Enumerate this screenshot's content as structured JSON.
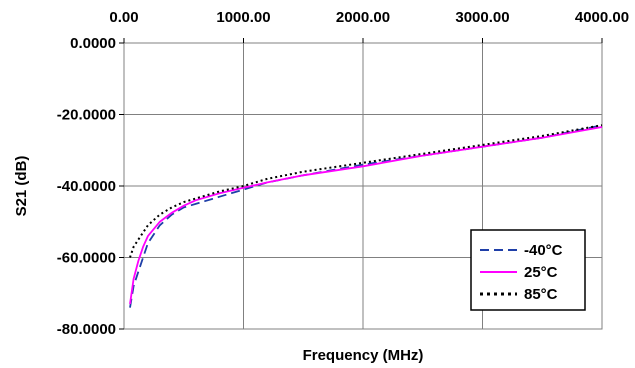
{
  "chart_data": {
    "type": "line",
    "title": "",
    "xlabel": "Frequency (MHz)",
    "ylabel": "S21 (dB)",
    "xlim": [
      0,
      4000
    ],
    "ylim": [
      -80,
      0
    ],
    "x_axis_position": "top",
    "x_ticks": [
      0,
      1000,
      2000,
      3000,
      4000
    ],
    "x_tick_labels": [
      "0.00",
      "1000.00",
      "2000.00",
      "3000.00",
      "4000.00"
    ],
    "y_ticks": [
      0,
      -20,
      -40,
      -60,
      -80
    ],
    "y_tick_labels": [
      "0.0000",
      "-20.0000",
      "-40.0000",
      "-60.0000",
      "-80.0000"
    ],
    "grid": true,
    "legend": "bottom-right",
    "series": [
      {
        "name": "-40°C",
        "color": "#1f3fa8",
        "dash": "dashed",
        "x": [
          50,
          80,
          120,
          160,
          200,
          300,
          400,
          500,
          600,
          800,
          1000,
          1200,
          1500,
          2000,
          2500,
          3000,
          3500,
          4000
        ],
        "y": [
          -74,
          -68,
          -64,
          -60,
          -56,
          -51,
          -48,
          -46,
          -45,
          -43,
          -41,
          -39,
          -37,
          -34,
          -31.5,
          -29,
          -26.5,
          -23
        ]
      },
      {
        "name": "25°C",
        "color": "#ff00ff",
        "dash": "solid",
        "x": [
          50,
          80,
          120,
          160,
          200,
          300,
          400,
          500,
          600,
          800,
          1000,
          1200,
          1500,
          2000,
          2500,
          3000,
          3500,
          4000
        ],
        "y": [
          -73,
          -66,
          -61,
          -57,
          -54,
          -50,
          -47.5,
          -45.5,
          -44,
          -42,
          -40.5,
          -39,
          -37,
          -34.5,
          -31.5,
          -29,
          -26.5,
          -23.5
        ]
      },
      {
        "name": "85°C",
        "color": "#000000",
        "dash": "dotted",
        "x": [
          50,
          80,
          120,
          160,
          200,
          300,
          400,
          500,
          600,
          800,
          1000,
          1200,
          1500,
          2000,
          2500,
          3000,
          3500,
          4000
        ],
        "y": [
          -60,
          -57,
          -55,
          -53,
          -51,
          -48,
          -46,
          -44.5,
          -43.5,
          -41.5,
          -40,
          -38,
          -36,
          -33.5,
          -31,
          -28.5,
          -26,
          -23
        ]
      }
    ]
  }
}
